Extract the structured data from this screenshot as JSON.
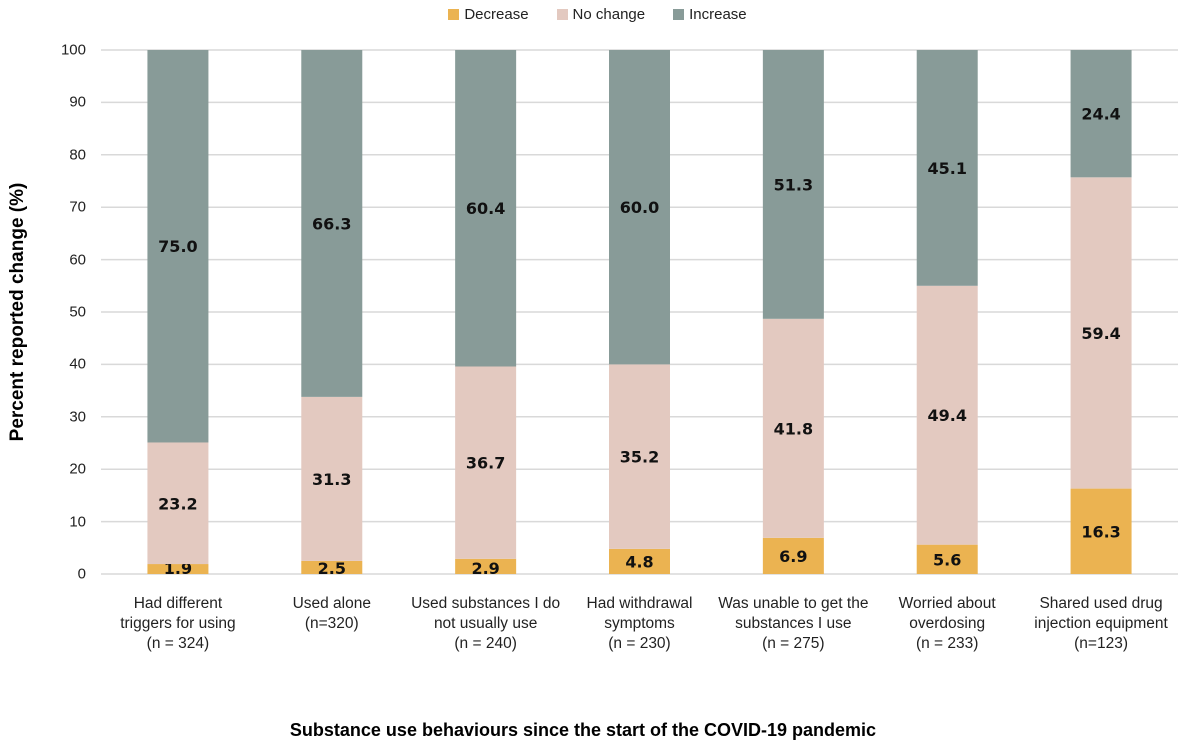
{
  "chart_data": {
    "type": "bar",
    "stacked": true,
    "title": "",
    "xlabel": "Substance use behaviours since the start of the COVID-19 pandemic",
    "ylabel": "Percent reported change (%)",
    "ylim": [
      0,
      100
    ],
    "yticks": [
      0,
      10,
      20,
      30,
      40,
      50,
      60,
      70,
      80,
      90,
      100
    ],
    "grid": true,
    "legend_position": "top-center",
    "categories": [
      [
        "Had different",
        "triggers for using",
        "(n = 324)"
      ],
      [
        "Used alone",
        "(n=320)"
      ],
      [
        "Used substances I do",
        "not usually use",
        "(n = 240)"
      ],
      [
        "Had withdrawal",
        "symptoms",
        "(n = 230)"
      ],
      [
        "Was unable to get the",
        "substances I use",
        "(n = 275)"
      ],
      [
        "Worried about",
        "overdosing",
        "(n = 233)"
      ],
      [
        "Shared used drug",
        "injection equipment",
        "(n=123)"
      ]
    ],
    "series": [
      {
        "name": "Decrease",
        "color": "#EBB351",
        "values": [
          1.9,
          2.5,
          2.9,
          4.8,
          6.9,
          5.6,
          16.3
        ]
      },
      {
        "name": "No change",
        "color": "#E3C9C0",
        "values": [
          23.2,
          31.3,
          36.7,
          35.2,
          41.8,
          49.4,
          59.4
        ]
      },
      {
        "name": "Increase",
        "color": "#889B98",
        "values": [
          75.0,
          66.3,
          60.4,
          60.0,
          51.3,
          45.1,
          24.4
        ]
      }
    ],
    "data_labels": true
  }
}
